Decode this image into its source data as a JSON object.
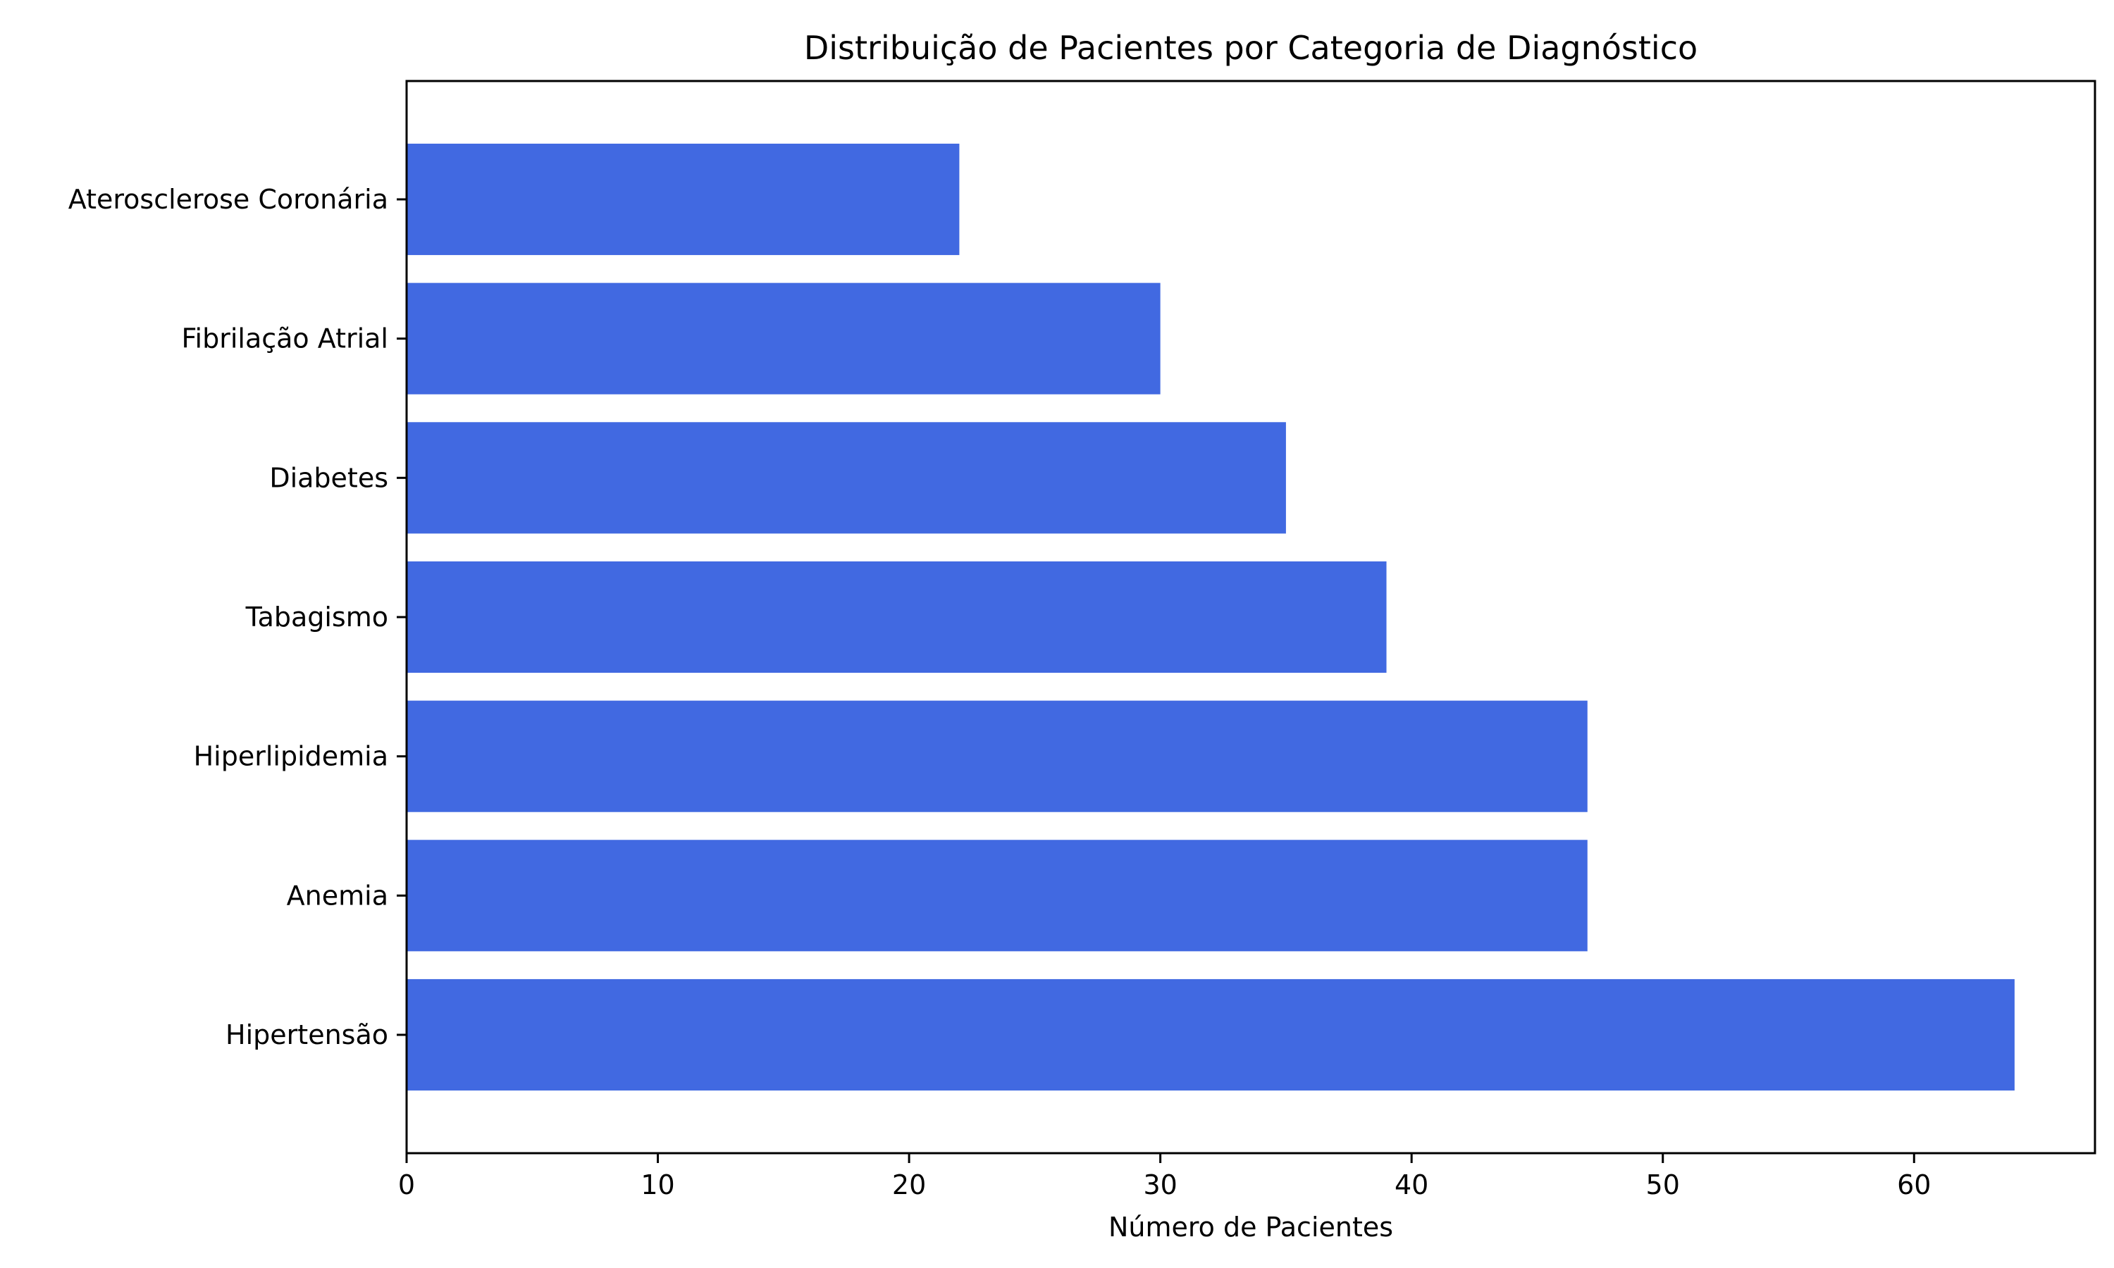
{
  "chart_data": {
    "type": "bar",
    "orientation": "horizontal",
    "title": "Distribuição de Pacientes por Categoria de Diagnóstico",
    "xlabel": "Número de Pacientes",
    "ylabel": "",
    "categories": [
      "Hipertensão",
      "Anemia",
      "Hiperlipidemia",
      "Tabagismo",
      "Diabetes",
      "Fibrilação Atrial",
      "Aterosclerose Coronária"
    ],
    "values": [
      64,
      47,
      47,
      39,
      35,
      30,
      22
    ],
    "xlim": [
      0,
      67.2
    ],
    "xticks": [
      0,
      10,
      20,
      30,
      40,
      50,
      60
    ],
    "grid": false,
    "bar_color": "#4169E1"
  }
}
